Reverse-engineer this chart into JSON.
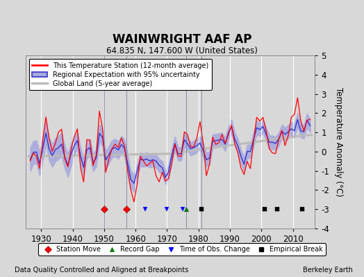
{
  "title": "WAINWRIGHT AAF AP",
  "subtitle": "64.835 N, 147.600 W (United States)",
  "ylabel": "Temperature Anomaly (°C)",
  "xlim": [
    1925,
    2017
  ],
  "ylim": [
    -4,
    5
  ],
  "yticks": [
    -4,
    -3,
    -2,
    -1,
    0,
    1,
    2,
    3,
    4,
    5
  ],
  "xticks": [
    1930,
    1940,
    1950,
    1960,
    1970,
    1980,
    1990,
    2000,
    2010
  ],
  "bg_color": "#d8d8d8",
  "plot_bg_color": "#d8d8d8",
  "grid_color": "white",
  "station_color": "red",
  "regional_color": "#3333cc",
  "regional_fill_color": "#aaaadd",
  "global_color": "#bbbbbb",
  "footer_left": "Data Quality Controlled and Aligned at Breakpoints",
  "footer_right": "Berkeley Earth",
  "station_move_years": [
    1950,
    1957
  ],
  "record_gap_years": [
    1976
  ],
  "obs_change_years": [
    1963,
    1970,
    1975
  ],
  "empirical_break_years": [
    1981,
    2001,
    2005,
    2013
  ],
  "vline_years": [
    1950,
    1957,
    1976,
    1981
  ],
  "marker_y": -3.0,
  "seed": 12345
}
